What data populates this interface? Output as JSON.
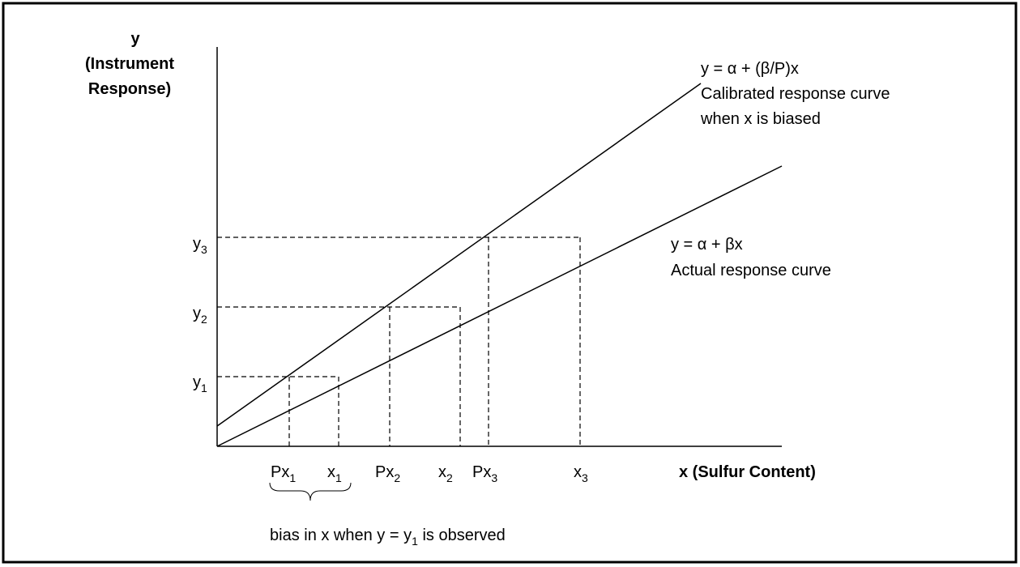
{
  "y_axis_label": [
    "y",
    "(Instrument",
    "Response)"
  ],
  "x_axis_label": "x (Sulfur Content)",
  "y_labels": [
    {
      "base": "y",
      "sub": "3"
    },
    {
      "base": "y",
      "sub": "2"
    },
    {
      "base": "y",
      "sub": "1"
    }
  ],
  "x_labels": [
    {
      "base": "Px",
      "sub": "1"
    },
    {
      "base": "x",
      "sub": "1"
    },
    {
      "base": "Px",
      "sub": "2"
    },
    {
      "base": "x",
      "sub": "2"
    },
    {
      "base": "Px",
      "sub": "3"
    },
    {
      "base": "x",
      "sub": "3"
    }
  ],
  "calibrated_curve": {
    "equation": "y = α + (β/P)x",
    "lines": [
      "Calibrated response curve",
      "when x is biased"
    ]
  },
  "actual_curve": {
    "equation": "y = α + βx",
    "lines": [
      "Actual response curve"
    ]
  },
  "bias_note": {
    "before": "bias in x when y = y",
    "sub": "1",
    "after": " is observed"
  }
}
